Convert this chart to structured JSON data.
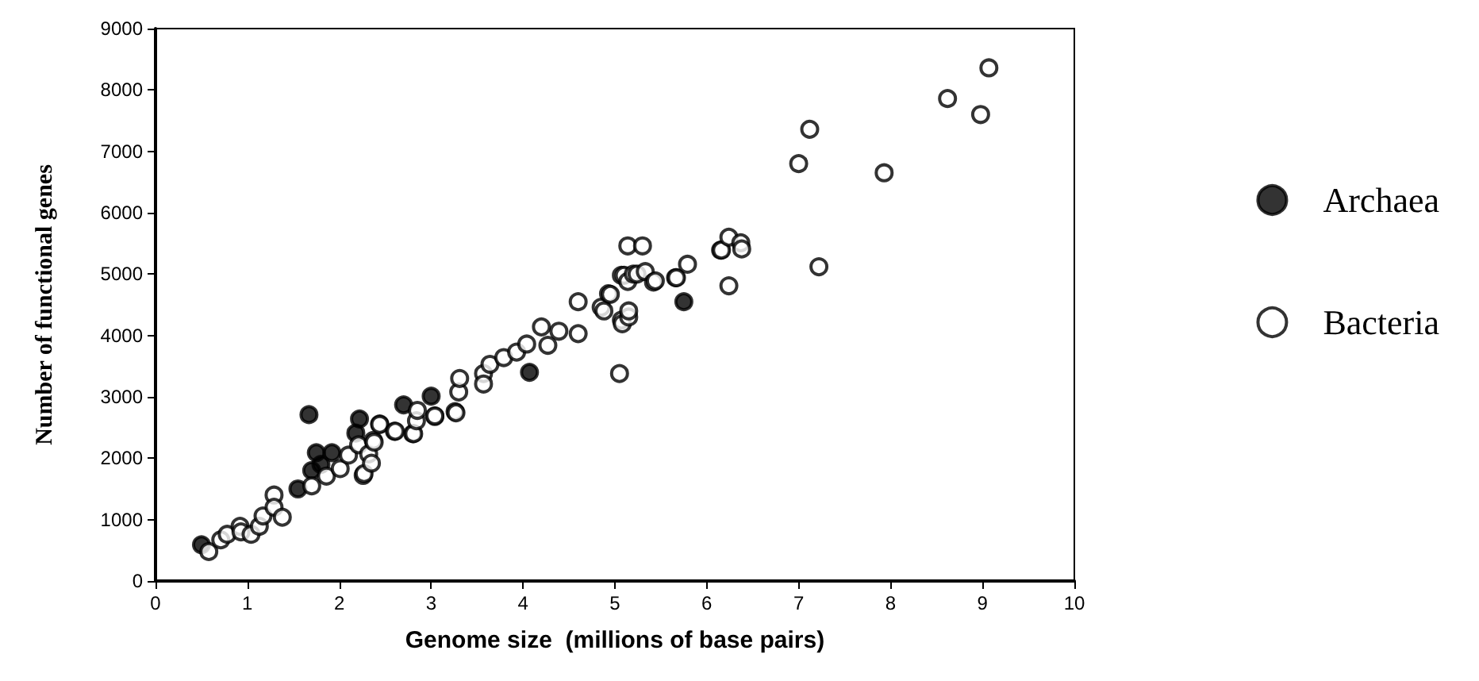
{
  "chart_data": {
    "type": "scatter",
    "xlabel": "Genome size  (millions of base pairs)",
    "ylabel": "Number of functional genes",
    "xlim": [
      0,
      10
    ],
    "xticks": [
      0,
      1,
      2,
      3,
      4,
      5,
      6,
      7,
      8,
      9,
      10
    ],
    "ylim": [
      0,
      9000
    ],
    "yticks": [
      0,
      1000,
      2000,
      3000,
      4000,
      5000,
      6000,
      7000,
      8000,
      9000
    ],
    "grid": false,
    "legend": "right",
    "marker": "circle",
    "series": [
      {
        "name": "Archaea",
        "color": "#000000",
        "x": [
          0.5,
          1.55,
          1.67,
          1.7,
          1.75,
          1.8,
          1.92,
          2.18,
          2.22,
          2.7,
          3.0,
          4.07,
          5.75
        ],
        "values": [
          590,
          1500,
          2710,
          1800,
          2090,
          1900,
          2090,
          2410,
          2640,
          2870,
          3010,
          3400,
          4550
        ]
      },
      {
        "name": "Bacteria",
        "color": "#ffffff",
        "x": [
          0.58,
          0.71,
          0.78,
          0.92,
          0.93,
          1.04,
          1.13,
          1.17,
          1.29,
          1.29,
          1.38,
          1.7,
          1.86,
          2.01,
          2.1,
          2.21,
          2.26,
          2.27,
          2.32,
          2.35,
          2.37,
          2.38,
          2.44,
          2.44,
          2.6,
          2.61,
          2.8,
          2.81,
          2.84,
          2.85,
          3.04,
          3.04,
          3.26,
          3.27,
          3.3,
          3.31,
          3.57,
          3.57,
          3.64,
          3.79,
          3.93,
          4.04,
          4.2,
          4.27,
          4.39,
          4.6,
          4.6,
          4.85,
          4.88,
          4.93,
          4.95,
          5.05,
          5.07,
          5.07,
          5.08,
          5.1,
          5.14,
          5.14,
          5.15,
          5.15,
          5.2,
          5.24,
          5.3,
          5.33,
          5.42,
          5.44,
          5.66,
          5.67,
          5.79,
          6.15,
          6.16,
          6.24,
          6.24,
          6.37,
          6.38,
          7.0,
          7.12,
          7.22,
          7.93,
          8.62,
          8.98,
          9.07
        ],
        "values": [
          480,
          670,
          760,
          890,
          800,
          760,
          890,
          1060,
          1400,
          1200,
          1040,
          1550,
          1710,
          1830,
          2050,
          2220,
          1720,
          1750,
          2070,
          1920,
          2290,
          2260,
          2560,
          2550,
          2440,
          2440,
          2400,
          2400,
          2610,
          2780,
          2680,
          2690,
          2760,
          2740,
          3080,
          3300,
          3380,
          3210,
          3530,
          3640,
          3730,
          3860,
          4140,
          3840,
          4070,
          4030,
          4550,
          4460,
          4400,
          4680,
          4670,
          3380,
          4980,
          4250,
          4190,
          4980,
          5460,
          4880,
          4300,
          4400,
          5000,
          5000,
          5460,
          5040,
          4870,
          4890,
          4940,
          4940,
          5160,
          5390,
          5390,
          5600,
          4810,
          5510,
          5410,
          6800,
          7360,
          5120,
          6650,
          7860,
          7600,
          8360
        ]
      }
    ]
  }
}
